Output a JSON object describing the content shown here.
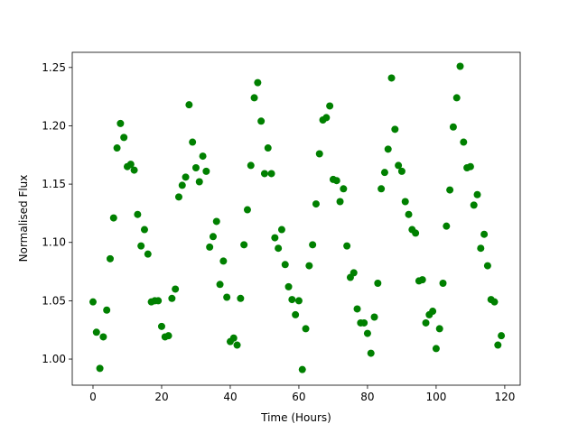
{
  "chart_data": {
    "type": "scatter",
    "xlabel": "Time (Hours)",
    "ylabel": "Normalised Flux",
    "color": "#008000",
    "x": [
      0,
      1,
      2,
      3,
      4,
      5,
      6,
      7,
      8,
      9,
      10,
      11,
      12,
      13,
      14,
      15,
      16,
      17,
      18,
      19,
      20,
      21,
      22,
      23,
      24,
      25,
      26,
      27,
      28,
      29,
      30,
      31,
      32,
      33,
      34,
      35,
      36,
      37,
      38,
      39,
      40,
      41,
      42,
      43,
      44,
      45,
      46,
      47,
      48,
      49,
      50,
      51,
      52,
      53,
      54,
      55,
      56,
      57,
      58,
      59,
      60,
      61,
      62,
      63,
      64,
      65,
      66,
      67,
      68,
      69,
      70,
      71,
      72,
      73,
      74,
      75,
      76,
      77,
      78,
      79,
      80,
      81,
      82,
      83,
      84,
      85,
      86,
      87,
      88,
      89,
      90,
      91,
      92,
      93,
      94,
      95,
      96,
      97,
      98,
      99,
      100,
      101,
      102,
      103,
      104,
      105,
      106,
      107,
      108,
      109,
      110,
      111,
      112,
      113,
      114,
      115,
      116,
      117,
      118,
      119
    ],
    "values": [
      1.049,
      1.023,
      0.992,
      1.019,
      1.042,
      1.086,
      1.121,
      1.181,
      1.202,
      1.19,
      1.165,
      1.167,
      1.162,
      1.124,
      1.097,
      1.111,
      1.09,
      1.049,
      1.05,
      1.05,
      1.028,
      1.019,
      1.02,
      1.052,
      1.06,
      1.139,
      1.149,
      1.156,
      1.218,
      1.186,
      1.164,
      1.152,
      1.174,
      1.161,
      1.096,
      1.105,
      1.118,
      1.064,
      1.084,
      1.053,
      1.015,
      1.018,
      1.012,
      1.052,
      1.098,
      1.128,
      1.166,
      1.224,
      1.237,
      1.204,
      1.159,
      1.181,
      1.159,
      1.104,
      1.095,
      1.111,
      1.081,
      1.062,
      1.051,
      1.038,
      1.05,
      0.991,
      1.026,
      1.08,
      1.098,
      1.133,
      1.176,
      1.205,
      1.207,
      1.217,
      1.154,
      1.153,
      1.135,
      1.146,
      1.097,
      1.07,
      1.074,
      1.043,
      1.031,
      1.031,
      1.022,
      1.005,
      1.036,
      1.065,
      1.146,
      1.16,
      1.18,
      1.241,
      1.197,
      1.166,
      1.161,
      1.135,
      1.124,
      1.111,
      1.108,
      1.067,
      1.068,
      1.031,
      1.038,
      1.041,
      1.009,
      1.026,
      1.065,
      1.114,
      1.145,
      1.199,
      1.224,
      1.251,
      1.186,
      1.164,
      1.165,
      1.132,
      1.141,
      1.095,
      1.107,
      1.08,
      1.051,
      1.049,
      1.012,
      1.02
    ],
    "xlim": [
      -6.05,
      124.5
    ],
    "xticks": [
      0,
      20,
      40,
      60,
      80,
      100,
      120
    ],
    "ylim": [
      0.9776,
      1.263
    ],
    "yticks": [
      {
        "value": 1.0,
        "label": "1.00"
      },
      {
        "value": 1.05,
        "label": "1.05"
      },
      {
        "value": 1.1,
        "label": "1.10"
      },
      {
        "value": 1.15,
        "label": "1.15"
      },
      {
        "value": 1.2,
        "label": "1.20"
      },
      {
        "value": 1.25,
        "label": "1.25"
      }
    ]
  }
}
